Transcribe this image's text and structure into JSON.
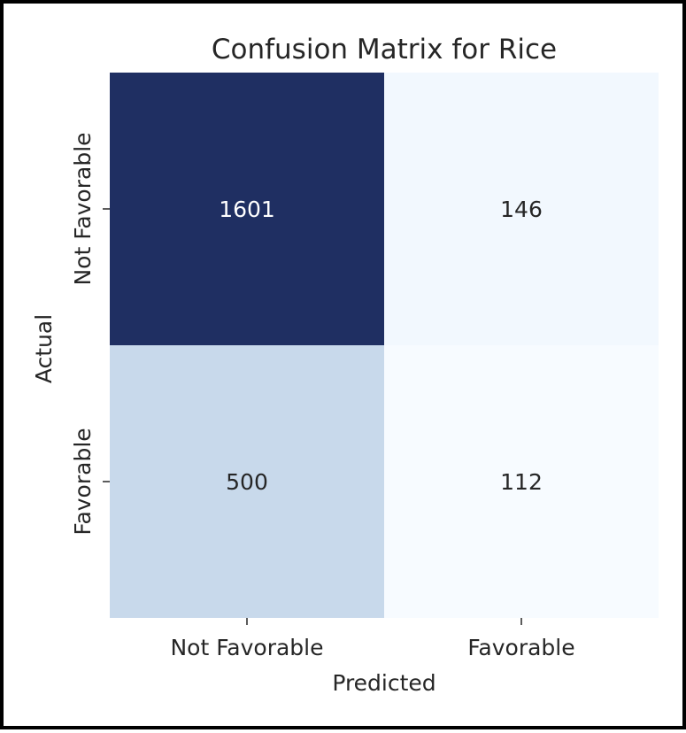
{
  "chart_data": {
    "type": "heatmap",
    "title": "Confusion Matrix for Rice",
    "xlabel": "Predicted",
    "ylabel": "Actual",
    "x_categories": [
      "Not Favorable",
      "Favorable"
    ],
    "y_categories": [
      "Not Favorable",
      "Favorable"
    ],
    "values": [
      [
        1601,
        146
      ],
      [
        500,
        112
      ]
    ],
    "colormap": "Blues",
    "colorbar": false,
    "colors": {
      "high": "#1f2f62",
      "mid": "#ccdbec",
      "low": "#f5f9fe",
      "annot_dark": "#262626",
      "annot_light": "#ffffff"
    }
  }
}
